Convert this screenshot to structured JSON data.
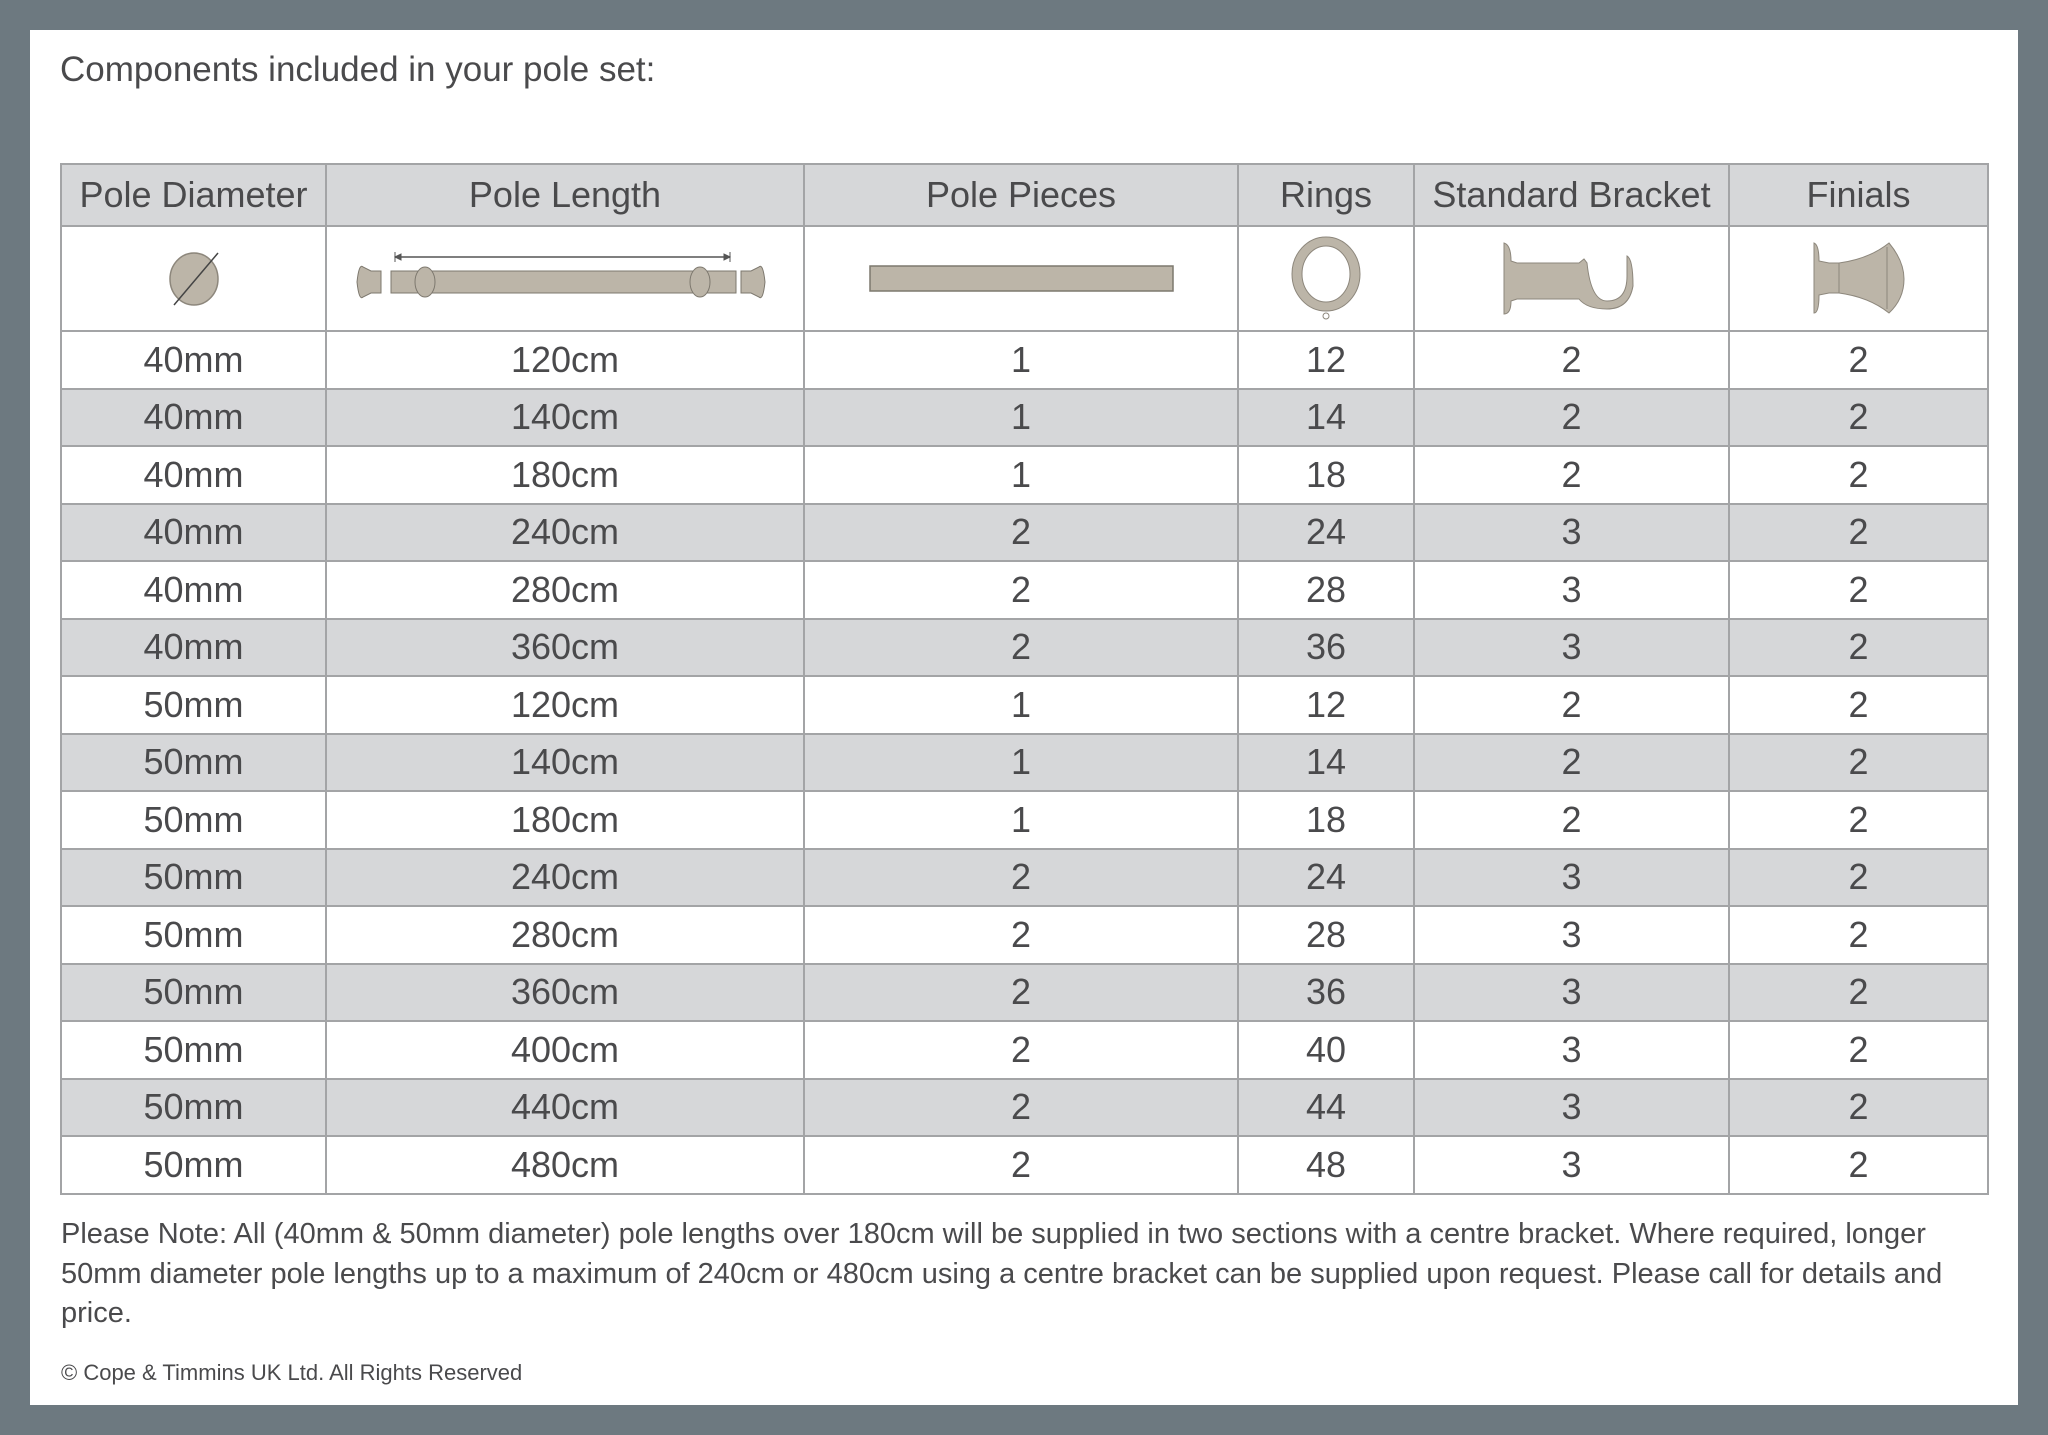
{
  "title": "Components included in your pole set:",
  "colors": {
    "frame": "#6d7980",
    "header_bg": "#d6d7d9",
    "icon_fill": "#bcb5a8"
  },
  "table": {
    "headers": [
      "Pole Diameter",
      "Pole Length",
      "Pole Pieces",
      "Rings",
      "Standard Bracket",
      "Finials"
    ],
    "icons": [
      "diameter-icon",
      "pole-length-icon",
      "pole-piece-icon",
      "ring-icon",
      "bracket-icon",
      "finial-icon"
    ],
    "rows": [
      [
        "40mm",
        "120cm",
        "1",
        "12",
        "2",
        "2"
      ],
      [
        "40mm",
        "140cm",
        "1",
        "14",
        "2",
        "2"
      ],
      [
        "40mm",
        "180cm",
        "1",
        "18",
        "2",
        "2"
      ],
      [
        "40mm",
        "240cm",
        "2",
        "24",
        "3",
        "2"
      ],
      [
        "40mm",
        "280cm",
        "2",
        "28",
        "3",
        "2"
      ],
      [
        "40mm",
        "360cm",
        "2",
        "36",
        "3",
        "2"
      ],
      [
        "50mm",
        "120cm",
        "1",
        "12",
        "2",
        "2"
      ],
      [
        "50mm",
        "140cm",
        "1",
        "14",
        "2",
        "2"
      ],
      [
        "50mm",
        "180cm",
        "1",
        "18",
        "2",
        "2"
      ],
      [
        "50mm",
        "240cm",
        "2",
        "24",
        "3",
        "2"
      ],
      [
        "50mm",
        "280cm",
        "2",
        "28",
        "3",
        "2"
      ],
      [
        "50mm",
        "360cm",
        "2",
        "36",
        "3",
        "2"
      ],
      [
        "50mm",
        "400cm",
        "2",
        "40",
        "3",
        "2"
      ],
      [
        "50mm",
        "440cm",
        "2",
        "44",
        "3",
        "2"
      ],
      [
        "50mm",
        "480cm",
        "2",
        "48",
        "3",
        "2"
      ]
    ]
  },
  "note": "Please Note: All (40mm & 50mm diameter) pole lengths over 180cm will be supplied in two sections with a centre bracket. Where required, longer 50mm diameter pole lengths up to a maximum of 240cm or 480cm using a centre bracket can be supplied upon request. Please call for details and price.",
  "copyright": "© Cope & Timmins UK Ltd.  All Rights Reserved"
}
